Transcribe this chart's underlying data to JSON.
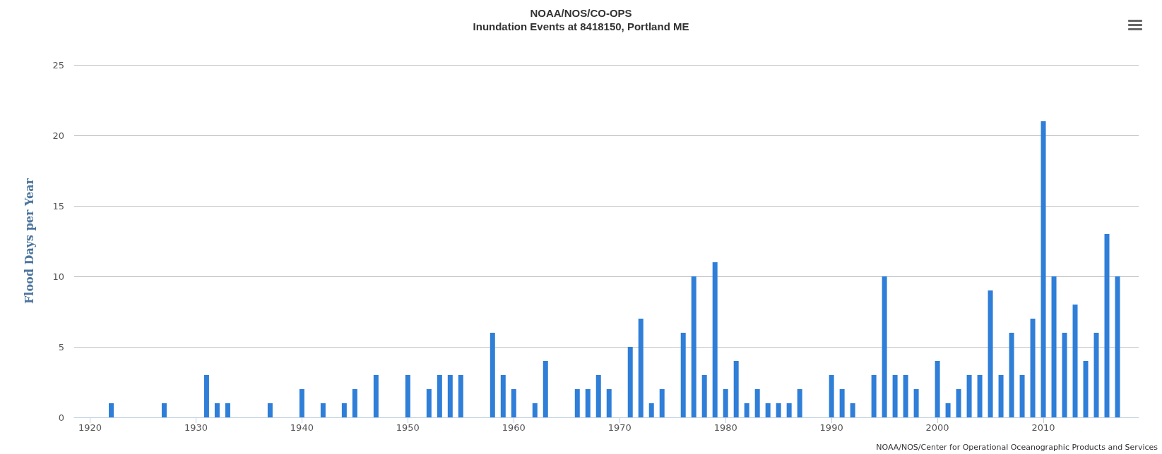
{
  "chart_data": {
    "type": "bar",
    "title": "NOAA/NOS/CO-OPS",
    "subtitle": "Inundation Events at 8418150, Portland ME",
    "ylabel": "Flood Days per Year",
    "annotations": [
      "NOAA/NOS/Center for Operational Oceanographic Products and Services"
    ],
    "x": [
      1922,
      1927,
      1931,
      1932,
      1933,
      1937,
      1940,
      1942,
      1944,
      1945,
      1947,
      1950,
      1952,
      1953,
      1954,
      1955,
      1958,
      1959,
      1960,
      1962,
      1963,
      1966,
      1967,
      1968,
      1969,
      1971,
      1972,
      1973,
      1974,
      1976,
      1977,
      1978,
      1979,
      1980,
      1981,
      1982,
      1983,
      1984,
      1985,
      1986,
      1987,
      1990,
      1991,
      1992,
      1994,
      1995,
      1996,
      1997,
      1998,
      2000,
      2001,
      2002,
      2003,
      2004,
      2005,
      2006,
      2007,
      2008,
      2009,
      2010,
      2011,
      2012,
      2013,
      2014,
      2015,
      2016,
      2017
    ],
    "values": [
      1,
      1,
      3,
      1,
      1,
      1,
      2,
      1,
      1,
      2,
      3,
      3,
      2,
      3,
      3,
      3,
      6,
      3,
      2,
      1,
      4,
      2,
      2,
      3,
      2,
      5,
      7,
      1,
      2,
      6,
      10,
      3,
      11,
      2,
      4,
      1,
      2,
      1,
      1,
      1,
      2,
      3,
      2,
      1,
      3,
      10,
      3,
      3,
      2,
      4,
      1,
      2,
      3,
      3,
      9,
      3,
      6,
      3,
      7,
      21,
      10,
      6,
      8,
      4,
      6,
      13,
      10
    ],
    "color": "#2f7ed8",
    "xlim": [
      1918.5,
      2019
    ],
    "xticks": [
      1920,
      1930,
      1940,
      1950,
      1960,
      1970,
      1980,
      1990,
      2000,
      2010
    ],
    "ylim": [
      0,
      25
    ],
    "yticks": [
      0,
      5,
      10,
      15,
      20,
      25
    ],
    "grid": "y"
  }
}
